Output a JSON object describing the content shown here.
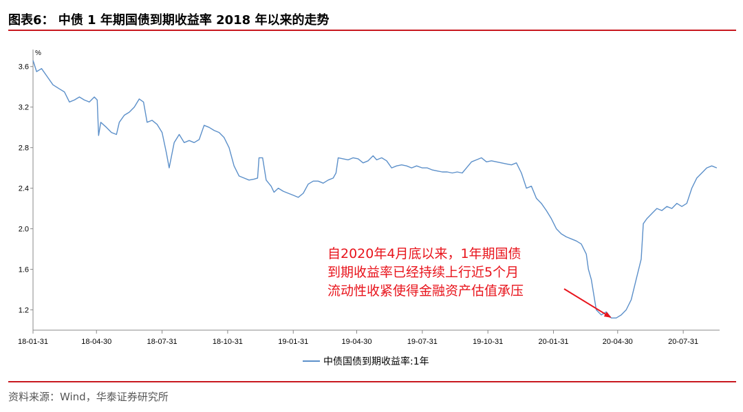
{
  "header": {
    "title": "图表6： 中债 1 年期国债到期收益率 2018 年以来的走势"
  },
  "footer": {
    "source": "资料来源：Wind，华泰证券研究所"
  },
  "colors": {
    "series": "#5b8fc9",
    "rule": "#c8161d",
    "annotation": "#e8141c"
  },
  "chart_data": {
    "type": "line",
    "ylabel": "%",
    "ylim": [
      1.0,
      3.7
    ],
    "yticks": [
      "3.6",
      "3.2",
      "2.8",
      "2.4",
      "2.0",
      "1.6",
      "1.2"
    ],
    "ytick_values": [
      3.6,
      3.2,
      2.8,
      2.4,
      2.0,
      1.6,
      1.2
    ],
    "xlim": [
      "2018-01-31",
      "2020-09-20"
    ],
    "xticks": [
      "18-01-31",
      "18-04-30",
      "18-07-31",
      "18-10-31",
      "19-01-31",
      "19-04-30",
      "19-07-31",
      "19-10-31",
      "20-01-31",
      "20-04-30",
      "20-07-31"
    ],
    "xtick_dates": [
      "2018-01-31",
      "2018-04-30",
      "2018-07-31",
      "2018-10-31",
      "2019-01-31",
      "2019-04-30",
      "2019-07-31",
      "2019-10-31",
      "2020-01-31",
      "2020-04-30",
      "2020-07-31"
    ],
    "grid": false,
    "legend_position": "bottom-center",
    "series": [
      {
        "name": "中债国债到期收益率:1年",
        "points": [
          [
            "2018-01-31",
            3.66
          ],
          [
            "2018-02-05",
            3.55
          ],
          [
            "2018-02-12",
            3.58
          ],
          [
            "2018-02-20",
            3.5
          ],
          [
            "2018-02-28",
            3.42
          ],
          [
            "2018-03-09",
            3.38
          ],
          [
            "2018-03-16",
            3.35
          ],
          [
            "2018-03-23",
            3.25
          ],
          [
            "2018-03-30",
            3.27
          ],
          [
            "2018-04-06",
            3.3
          ],
          [
            "2018-04-13",
            3.27
          ],
          [
            "2018-04-20",
            3.25
          ],
          [
            "2018-04-27",
            3.3
          ],
          [
            "2018-05-01",
            3.27
          ],
          [
            "2018-05-03",
            2.92
          ],
          [
            "2018-05-06",
            3.05
          ],
          [
            "2018-05-14",
            3.0
          ],
          [
            "2018-05-21",
            2.95
          ],
          [
            "2018-05-28",
            2.93
          ],
          [
            "2018-06-01",
            3.05
          ],
          [
            "2018-06-08",
            3.12
          ],
          [
            "2018-06-15",
            3.15
          ],
          [
            "2018-06-22",
            3.2
          ],
          [
            "2018-06-29",
            3.28
          ],
          [
            "2018-07-05",
            3.25
          ],
          [
            "2018-07-10",
            3.05
          ],
          [
            "2018-07-17",
            3.07
          ],
          [
            "2018-07-24",
            3.03
          ],
          [
            "2018-07-31",
            2.95
          ],
          [
            "2018-08-06",
            2.75
          ],
          [
            "2018-08-10",
            2.6
          ],
          [
            "2018-08-17",
            2.85
          ],
          [
            "2018-08-24",
            2.93
          ],
          [
            "2018-08-31",
            2.85
          ],
          [
            "2018-09-07",
            2.87
          ],
          [
            "2018-09-14",
            2.85
          ],
          [
            "2018-09-21",
            2.88
          ],
          [
            "2018-09-28",
            3.02
          ],
          [
            "2018-10-05",
            3.0
          ],
          [
            "2018-10-12",
            2.97
          ],
          [
            "2018-10-19",
            2.95
          ],
          [
            "2018-10-26",
            2.9
          ],
          [
            "2018-11-02",
            2.8
          ],
          [
            "2018-11-09",
            2.62
          ],
          [
            "2018-11-16",
            2.52
          ],
          [
            "2018-11-23",
            2.5
          ],
          [
            "2018-11-30",
            2.48
          ],
          [
            "2018-12-07",
            2.49
          ],
          [
            "2018-12-12",
            2.5
          ],
          [
            "2018-12-14",
            2.7
          ],
          [
            "2018-12-19",
            2.7
          ],
          [
            "2018-12-24",
            2.48
          ],
          [
            "2018-12-31",
            2.42
          ],
          [
            "2019-01-04",
            2.36
          ],
          [
            "2019-01-10",
            2.4
          ],
          [
            "2019-01-17",
            2.37
          ],
          [
            "2019-01-24",
            2.35
          ],
          [
            "2019-01-31",
            2.33
          ],
          [
            "2019-02-07",
            2.31
          ],
          [
            "2019-02-14",
            2.35
          ],
          [
            "2019-02-21",
            2.44
          ],
          [
            "2019-02-28",
            2.47
          ],
          [
            "2019-03-07",
            2.47
          ],
          [
            "2019-03-14",
            2.45
          ],
          [
            "2019-03-21",
            2.48
          ],
          [
            "2019-03-28",
            2.5
          ],
          [
            "2019-04-01",
            2.55
          ],
          [
            "2019-04-04",
            2.7
          ],
          [
            "2019-04-11",
            2.69
          ],
          [
            "2019-04-18",
            2.68
          ],
          [
            "2019-04-25",
            2.7
          ],
          [
            "2019-05-02",
            2.69
          ],
          [
            "2019-05-09",
            2.65
          ],
          [
            "2019-05-16",
            2.67
          ],
          [
            "2019-05-23",
            2.72
          ],
          [
            "2019-05-28",
            2.68
          ],
          [
            "2019-06-04",
            2.7
          ],
          [
            "2019-06-11",
            2.67
          ],
          [
            "2019-06-18",
            2.6
          ],
          [
            "2019-06-25",
            2.62
          ],
          [
            "2019-07-02",
            2.63
          ],
          [
            "2019-07-09",
            2.62
          ],
          [
            "2019-07-16",
            2.6
          ],
          [
            "2019-07-23",
            2.62
          ],
          [
            "2019-07-31",
            2.6
          ],
          [
            "2019-08-07",
            2.6
          ],
          [
            "2019-08-14",
            2.58
          ],
          [
            "2019-08-21",
            2.57
          ],
          [
            "2019-08-28",
            2.56
          ],
          [
            "2019-09-04",
            2.56
          ],
          [
            "2019-09-11",
            2.55
          ],
          [
            "2019-09-18",
            2.56
          ],
          [
            "2019-09-25",
            2.55
          ],
          [
            "2019-10-01",
            2.6
          ],
          [
            "2019-10-08",
            2.66
          ],
          [
            "2019-10-15",
            2.68
          ],
          [
            "2019-10-22",
            2.7
          ],
          [
            "2019-10-29",
            2.66
          ],
          [
            "2019-11-05",
            2.67
          ],
          [
            "2019-11-12",
            2.66
          ],
          [
            "2019-11-19",
            2.65
          ],
          [
            "2019-11-26",
            2.64
          ],
          [
            "2019-12-03",
            2.63
          ],
          [
            "2019-12-10",
            2.65
          ],
          [
            "2019-12-17",
            2.55
          ],
          [
            "2019-12-24",
            2.4
          ],
          [
            "2019-12-31",
            2.42
          ],
          [
            "2020-01-07",
            2.3
          ],
          [
            "2020-01-14",
            2.25
          ],
          [
            "2020-01-21",
            2.18
          ],
          [
            "2020-01-28",
            2.1
          ],
          [
            "2020-02-04",
            2.0
          ],
          [
            "2020-02-11",
            1.95
          ],
          [
            "2020-02-18",
            1.92
          ],
          [
            "2020-02-25",
            1.9
          ],
          [
            "2020-03-03",
            1.88
          ],
          [
            "2020-03-10",
            1.85
          ],
          [
            "2020-03-17",
            1.75
          ],
          [
            "2020-03-20",
            1.6
          ],
          [
            "2020-03-24",
            1.5
          ],
          [
            "2020-03-31",
            1.2
          ],
          [
            "2020-04-07",
            1.15
          ],
          [
            "2020-04-14",
            1.18
          ],
          [
            "2020-04-21",
            1.12
          ],
          [
            "2020-04-28",
            1.12
          ],
          [
            "2020-05-05",
            1.15
          ],
          [
            "2020-05-12",
            1.2
          ],
          [
            "2020-05-19",
            1.3
          ],
          [
            "2020-05-26",
            1.5
          ],
          [
            "2020-06-02",
            1.7
          ],
          [
            "2020-06-05",
            2.05
          ],
          [
            "2020-06-10",
            2.1
          ],
          [
            "2020-06-17",
            2.15
          ],
          [
            "2020-06-24",
            2.2
          ],
          [
            "2020-07-01",
            2.18
          ],
          [
            "2020-07-08",
            2.22
          ],
          [
            "2020-07-15",
            2.2
          ],
          [
            "2020-07-22",
            2.25
          ],
          [
            "2020-07-29",
            2.22
          ],
          [
            "2020-08-05",
            2.25
          ],
          [
            "2020-08-12",
            2.4
          ],
          [
            "2020-08-19",
            2.5
          ],
          [
            "2020-08-26",
            2.55
          ],
          [
            "2020-09-02",
            2.6
          ],
          [
            "2020-09-09",
            2.62
          ],
          [
            "2020-09-16",
            2.6
          ]
        ]
      }
    ],
    "annotations": [
      {
        "lines": [
          "自2020年4月底以来，1年期国债",
          "到期收益率已经持续上行近5个月",
          "流动性收紧使得金融资产估值承压"
        ],
        "arrow_to": [
          "2020-04-22",
          1.12
        ]
      }
    ]
  }
}
